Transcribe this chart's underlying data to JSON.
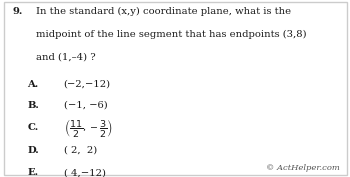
{
  "bg_color": "#ffffff",
  "border_color": "#cccccc",
  "question_number": "9.",
  "q_line1": "In the standard (x,y) coordinate plane, what is the",
  "q_line2": "midpoint of the line segment that has endpoints (3,8)",
  "q_line3": "and (1,–4) ?",
  "labels": [
    "A.",
    "B.",
    "C.",
    "D.",
    "E."
  ],
  "answers": [
    "(−2,−12)",
    "(−1, −6)",
    null,
    "( 2,  2)",
    "( 4,−12)"
  ],
  "footer": "© ActHelper.com",
  "font_color": "#1a1a1a",
  "footer_color": "#555555"
}
